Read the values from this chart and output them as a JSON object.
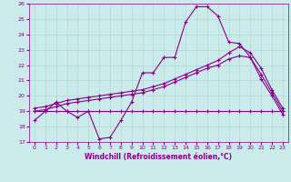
{
  "xlabel": "Windchill (Refroidissement éolien,°C)",
  "xlim": [
    -0.5,
    23.5
  ],
  "ylim": [
    17,
    26
  ],
  "yticks": [
    17,
    18,
    19,
    20,
    21,
    22,
    23,
    24,
    25,
    26
  ],
  "xticks": [
    0,
    1,
    2,
    3,
    4,
    5,
    6,
    7,
    8,
    9,
    10,
    11,
    12,
    13,
    14,
    15,
    16,
    17,
    18,
    19,
    20,
    21,
    22,
    23
  ],
  "bg_color": "#cbeaea",
  "grid_color": "#b0d8d8",
  "line_color": "#880088",
  "line_width": 0.8,
  "marker": "+",
  "marker_size": 3,
  "series1_x": [
    0,
    1,
    2,
    3,
    4,
    5,
    6,
    7,
    8,
    9,
    10,
    11,
    12,
    13,
    14,
    15,
    16,
    17,
    18,
    19,
    20,
    21,
    22,
    23
  ],
  "series1_y": [
    18.4,
    19.0,
    19.6,
    19.0,
    18.6,
    19.0,
    17.2,
    17.3,
    18.4,
    19.6,
    21.5,
    21.5,
    22.5,
    22.5,
    24.8,
    25.8,
    25.8,
    25.2,
    23.5,
    23.4,
    22.5,
    21.1,
    20.0,
    18.8
  ],
  "series2_x": [
    0,
    1,
    2,
    3,
    4,
    5,
    6,
    7,
    8,
    9,
    10,
    11,
    12,
    13,
    14,
    15,
    16,
    17,
    18,
    19,
    20,
    21,
    22,
    23
  ],
  "series2_y": [
    19.0,
    19.0,
    19.0,
    19.0,
    19.0,
    19.0,
    19.0,
    19.0,
    19.0,
    19.0,
    19.0,
    19.0,
    19.0,
    19.0,
    19.0,
    19.0,
    19.0,
    19.0,
    19.0,
    19.0,
    19.0,
    19.0,
    19.0,
    19.0
  ],
  "series3_x": [
    0,
    1,
    2,
    3,
    4,
    5,
    6,
    7,
    8,
    9,
    10,
    11,
    12,
    13,
    14,
    15,
    16,
    17,
    18,
    19,
    20,
    21,
    22,
    23
  ],
  "series3_y": [
    19.0,
    19.1,
    19.3,
    19.5,
    19.6,
    19.7,
    19.8,
    19.9,
    20.0,
    20.1,
    20.2,
    20.4,
    20.6,
    20.9,
    21.2,
    21.5,
    21.8,
    22.0,
    22.4,
    22.6,
    22.5,
    21.4,
    20.2,
    19.0
  ],
  "series4_x": [
    0,
    1,
    2,
    3,
    4,
    5,
    6,
    7,
    8,
    9,
    10,
    11,
    12,
    13,
    14,
    15,
    16,
    17,
    18,
    19,
    20,
    21,
    22,
    23
  ],
  "series4_y": [
    19.2,
    19.3,
    19.5,
    19.7,
    19.8,
    19.9,
    20.0,
    20.1,
    20.2,
    20.3,
    20.4,
    20.6,
    20.8,
    21.1,
    21.4,
    21.7,
    22.0,
    22.3,
    22.8,
    23.2,
    22.8,
    21.8,
    20.4,
    19.2
  ]
}
